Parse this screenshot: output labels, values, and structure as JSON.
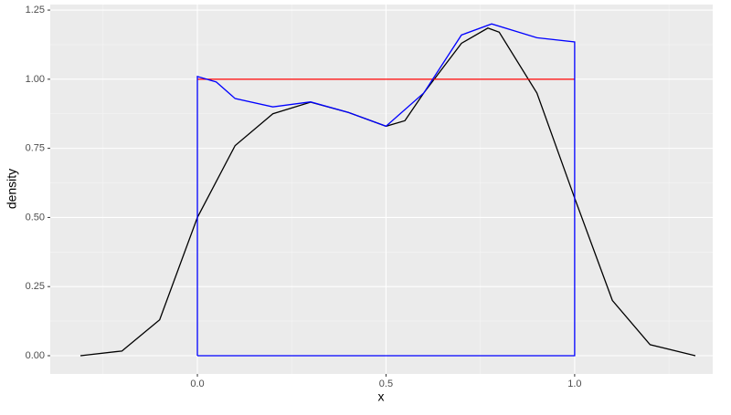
{
  "chart_data": {
    "type": "line",
    "x_label": "x",
    "y_label": "density",
    "xlim": [
      -0.39,
      1.366
    ],
    "ylim": [
      -0.066,
      1.27
    ],
    "xticks": [
      {
        "value": 0,
        "label": "0.0"
      },
      {
        "value": 0.5,
        "label": "0.5"
      },
      {
        "value": 1,
        "label": "1.0"
      }
    ],
    "yticks": [
      {
        "value": 0,
        "label": "0.00"
      },
      {
        "value": 0.25,
        "label": "0.25"
      },
      {
        "value": 0.5,
        "label": "0.50"
      },
      {
        "value": 0.75,
        "label": "0.75"
      },
      {
        "value": 1,
        "label": "1.00"
      },
      {
        "value": 1.25,
        "label": "1.25"
      }
    ],
    "grid": true,
    "series": [
      {
        "color": "#000000",
        "x": [
          -0.31,
          -0.2,
          -0.1,
          0,
          0.1,
          0.2,
          0.3,
          0.4,
          0.5,
          0.55,
          0.6,
          0.7,
          0.77,
          0.8,
          0.9,
          1.0,
          1.1,
          1.2,
          1.32
        ],
        "values": [
          0,
          0.017,
          0.13,
          0.5,
          0.76,
          0.875,
          0.917,
          0.88,
          0.83,
          0.85,
          0.95,
          1.13,
          1.185,
          1.17,
          0.95,
          0.57,
          0.2,
          0.04,
          0
        ]
      },
      {
        "color": "#ff0000",
        "x": [
          0,
          1
        ],
        "values": [
          1,
          1
        ]
      },
      {
        "color": "#0000ff",
        "x": [
          0,
          0,
          0.05,
          0.1,
          0.2,
          0.3,
          0.4,
          0.5,
          0.6,
          0.7,
          0.78,
          0.9,
          1.0,
          1.0,
          0
        ],
        "values": [
          0,
          1.01,
          0.99,
          0.93,
          0.9,
          0.918,
          0.88,
          0.83,
          0.95,
          1.16,
          1.2,
          1.15,
          1.135,
          0,
          0
        ]
      }
    ]
  }
}
